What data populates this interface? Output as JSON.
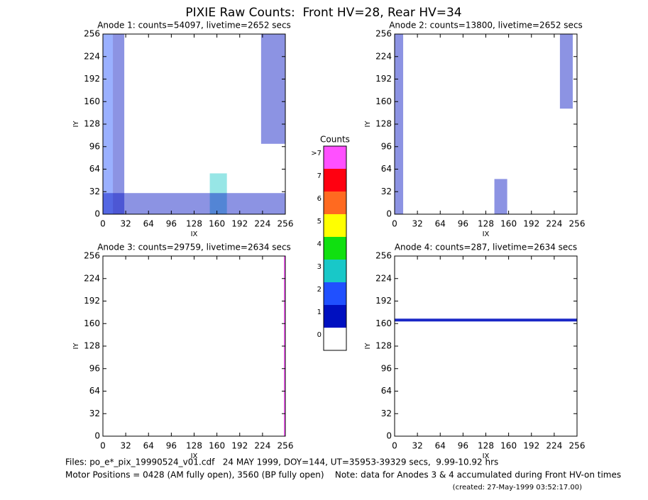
{
  "title": "PIXIE Raw Counts:  Front HV=28, Rear HV=34",
  "chart_data": [
    {
      "type": "heatmap",
      "title": "Anode 1: counts=54097, livetime=2652 secs",
      "x_label": "IX",
      "y_label": "IY",
      "xlim": [
        0,
        256
      ],
      "ylim": [
        0,
        256
      ],
      "xticks": [
        0,
        32,
        64,
        96,
        128,
        160,
        192,
        224,
        256
      ],
      "yticks": [
        0,
        32,
        64,
        96,
        128,
        160,
        192,
        224,
        256
      ],
      "regions": [
        {
          "x": [
            0,
            14
          ],
          "y": [
            0,
            256
          ],
          "level": 2
        },
        {
          "x": [
            14,
            30
          ],
          "y": [
            0,
            256
          ],
          "level": 1
        },
        {
          "x": [
            222,
            256
          ],
          "y": [
            100,
            256
          ],
          "level": 1
        },
        {
          "x": [
            150,
            174
          ],
          "y": [
            0,
            58
          ],
          "level": 3
        },
        {
          "x": [
            0,
            256
          ],
          "y": [
            0,
            30
          ],
          "level": 1
        }
      ]
    },
    {
      "type": "heatmap",
      "title": "Anode 2: counts=13800, livetime=2652 secs",
      "x_label": "IX",
      "y_label": "IY",
      "xlim": [
        0,
        256
      ],
      "ylim": [
        0,
        256
      ],
      "xticks": [
        0,
        32,
        64,
        96,
        128,
        160,
        192,
        224,
        256
      ],
      "yticks": [
        0,
        32,
        64,
        96,
        128,
        160,
        192,
        224,
        256
      ],
      "regions": [
        {
          "x": [
            0,
            12
          ],
          "y": [
            0,
            256
          ],
          "level": 1
        },
        {
          "x": [
            232,
            250
          ],
          "y": [
            150,
            256
          ],
          "level": 1
        },
        {
          "x": [
            140,
            158
          ],
          "y": [
            0,
            50
          ],
          "level": 1
        }
      ]
    },
    {
      "type": "heatmap",
      "title": "Anode 3: counts=29759, livetime=2634 secs",
      "x_label": "IX",
      "y_label": "IY",
      "xlim": [
        0,
        256
      ],
      "ylim": [
        0,
        256
      ],
      "xticks": [
        0,
        32,
        64,
        96,
        128,
        160,
        192,
        224,
        256
      ],
      "yticks": [
        0,
        32,
        64,
        96,
        128,
        160,
        192,
        224,
        256
      ],
      "regions": [
        {
          "x": [
            254,
            256
          ],
          "y": [
            0,
            256
          ],
          "level": 8
        }
      ]
    },
    {
      "type": "heatmap",
      "title": "Anode 4: counts=287, livetime=2634 secs",
      "x_label": "IX",
      "y_label": "IY",
      "xlim": [
        0,
        256
      ],
      "ylim": [
        0,
        256
      ],
      "xticks": [
        0,
        32,
        64,
        96,
        128,
        160,
        192,
        224,
        256
      ],
      "yticks": [
        0,
        32,
        64,
        96,
        128,
        160,
        192,
        224,
        256
      ],
      "regions": [
        {
          "x": [
            0,
            256
          ],
          "y": [
            163,
            167
          ],
          "level": 1
        }
      ]
    }
  ],
  "colorbar": {
    "title": "Counts",
    "levels": [
      {
        "label": "0",
        "color": "#ffffff"
      },
      {
        "label": "1",
        "color": "#0010c0"
      },
      {
        "label": "2",
        "color": "#2050ff"
      },
      {
        "label": "3",
        "color": "#18c8c8"
      },
      {
        "label": "4",
        "color": "#10e010"
      },
      {
        "label": "5",
        "color": "#ffff00"
      },
      {
        "label": "6",
        "color": "#ff6a20"
      },
      {
        "label": "7",
        "color": "#ff0010"
      },
      {
        "label": ">7",
        "color": "#ff50ff"
      }
    ]
  },
  "footer": {
    "files": "Files: po_e*_pix_19990524_v01.cdf   24 MAY 1999, DOY=144, UT=35953-39329 secs,  9.99-10.92 hrs",
    "motor": "Motor Positions = 0428 (AM fully open), 3560 (BP fully open)    Note: data for Anodes 3 & 4 accumulated during Front HV-on times",
    "created": "(created: 27-May-1999 03:52:17.00)"
  }
}
